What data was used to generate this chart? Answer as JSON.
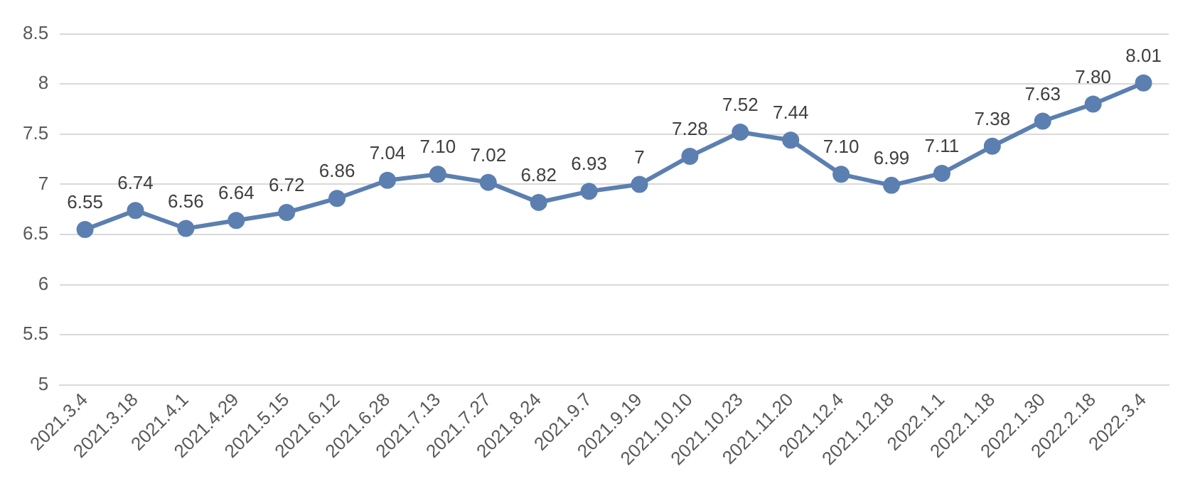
{
  "chart_data": {
    "type": "line",
    "categories": [
      "2021.3.4",
      "2021.3.18",
      "2021.4.1",
      "2021.4.29",
      "2021.5.15",
      "2021.6.12",
      "2021.6.28",
      "2021.7.13",
      "2021.7.27",
      "2021.8.24",
      "2021.9.7",
      "2021.9.19",
      "2021.10.10",
      "2021.10.23",
      "2021.11.20",
      "2021.12.4",
      "2021.12.18",
      "2022.1.1",
      "2022.1.18",
      "2022.1.30",
      "2022.2.18",
      "2022.3.4"
    ],
    "series": [
      {
        "color": "#5b7fb0",
        "values": [
          6.55,
          6.74,
          6.56,
          6.64,
          6.72,
          6.86,
          7.04,
          7.1,
          7.02,
          6.82,
          6.93,
          7,
          7.28,
          7.52,
          7.44,
          7.1,
          6.99,
          7.11,
          7.38,
          7.63,
          7.8,
          8.01
        ],
        "value_labels": [
          "6.55",
          "6.74",
          "6.56",
          "6.64",
          "6.72",
          "6.86",
          "7.04",
          "7.10",
          "7.02",
          "6.82",
          "6.93",
          "7",
          "7.28",
          "7.52",
          "7.44",
          "7.10",
          "6.99",
          "7.11",
          "7.38",
          "7.63",
          "7.80",
          "8.01"
        ]
      }
    ],
    "ylim": [
      5,
      8.5
    ],
    "yticks": [
      5,
      5.5,
      6,
      6.5,
      7,
      7.5,
      8,
      8.5
    ],
    "grid": "y",
    "legend": false,
    "marker": "circle",
    "line_style": "solid"
  }
}
